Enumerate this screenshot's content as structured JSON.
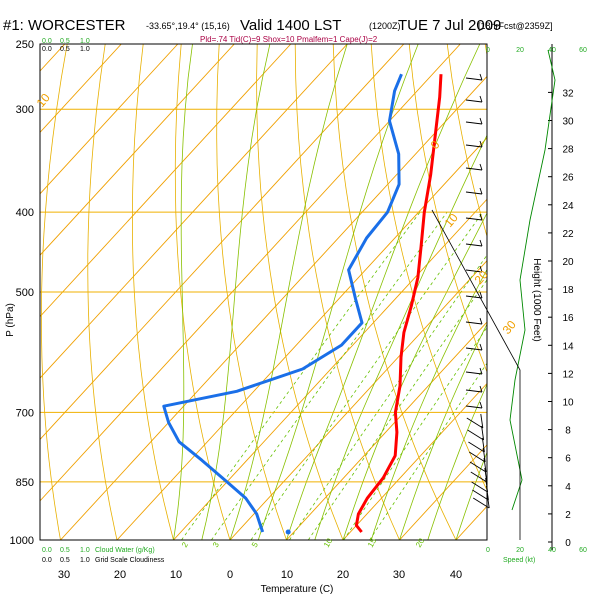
{
  "header": {
    "title": "#1: WORCESTER",
    "coords": "-33.65°,19.4° (15,16)",
    "valid": "Valid 1400 LST",
    "utc": "(1200Z)",
    "date": "TUE 7 Jul 2009",
    "forecast": "[18hrFcst@2359Z]",
    "indices": "Pld=.74 Tid(C)=9 Shox=10 Pmalfem=1 Cape(J)=2"
  },
  "colors": {
    "temperature": "#ff0000",
    "dewpoint": "#1a6fe8",
    "isotherm": "#f0a000",
    "isobar": "#f0b000",
    "dry_adiabat": "#e8b000",
    "moist_adiabat": "#88c000",
    "mixing_ratio": "#66c000",
    "wind_speed": "#008800",
    "green_text": "#22aa22"
  },
  "chart_data": {
    "type": "line",
    "title": "Skew-T log-P sounding",
    "xlabel": "Temperature (C)",
    "ylabel": "P (hPa)",
    "ylabel_right": "Height (1000 Feet)",
    "pressure_ticks": [
      250,
      300,
      400,
      500,
      700,
      850,
      1000
    ],
    "temperature_ticks": [
      30,
      20,
      10,
      0,
      10,
      20,
      30,
      40
    ],
    "height_ticks": [
      0,
      2,
      4,
      6,
      8,
      10,
      12,
      14,
      16,
      18,
      20,
      22,
      24,
      26,
      28,
      30,
      32
    ],
    "cloud_scale_labels": [
      "0.0",
      "0.5",
      "1.0"
    ],
    "cloud_water_label": "Cloud Water (g/Kg)",
    "grid_cloudiness_label": "Grid Scale Cloudiness",
    "wind_speed_ticks": [
      0,
      20,
      40,
      60
    ],
    "wind_speed_label": "Speed (kt)",
    "isotherm_labels": [
      "10",
      "0",
      "10",
      "20",
      "30"
    ],
    "mixing_ratio_labels": [
      "2",
      "3",
      "5",
      "10",
      "15",
      "20"
    ],
    "series": [
      {
        "name": "Temperature",
        "points": [
          {
            "p": 978,
            "t": 22.0
          },
          {
            "p": 960,
            "t": 20.0
          },
          {
            "p": 930,
            "t": 18.5
          },
          {
            "p": 890,
            "t": 17.5
          },
          {
            "p": 840,
            "t": 17.0
          },
          {
            "p": 790,
            "t": 15.5
          },
          {
            "p": 740,
            "t": 12.0
          },
          {
            "p": 700,
            "t": 8.5
          },
          {
            "p": 650,
            "t": 5.0
          },
          {
            "p": 600,
            "t": 0.5
          },
          {
            "p": 560,
            "t": -3.0
          },
          {
            "p": 520,
            "t": -6.0
          },
          {
            "p": 480,
            "t": -9.5
          },
          {
            "p": 440,
            "t": -14.0
          },
          {
            "p": 400,
            "t": -19.0
          },
          {
            "p": 360,
            "t": -24.0
          },
          {
            "p": 320,
            "t": -30.0
          },
          {
            "p": 290,
            "t": -35.0
          },
          {
            "p": 272,
            "t": -38.5
          }
        ]
      },
      {
        "name": "Dewpoint",
        "points": [
          {
            "p": 978,
            "t": 4.5
          },
          {
            "p": 960,
            "t": 3.0
          },
          {
            "p": 930,
            "t": 0.5
          },
          {
            "p": 890,
            "t": -4.0
          },
          {
            "p": 850,
            "t": -10.0
          },
          {
            "p": 800,
            "t": -18.0
          },
          {
            "p": 760,
            "t": -25.0
          },
          {
            "p": 720,
            "t": -30.0
          },
          {
            "p": 688,
            "t": -33.5
          },
          {
            "p": 660,
            "t": -23.0
          },
          {
            "p": 620,
            "t": -15.0
          },
          {
            "p": 580,
            "t": -12.0
          },
          {
            "p": 545,
            "t": -12.0
          },
          {
            "p": 510,
            "t": -17.0
          },
          {
            "p": 470,
            "t": -23.0
          },
          {
            "p": 430,
            "t": -25.0
          },
          {
            "p": 400,
            "t": -25.5
          },
          {
            "p": 370,
            "t": -28.0
          },
          {
            "p": 340,
            "t": -33.0
          },
          {
            "p": 310,
            "t": -40.0
          },
          {
            "p": 285,
            "t": -44.0
          },
          {
            "p": 272,
            "t": -45.5
          }
        ]
      }
    ],
    "surface_marker": {
      "p": 978,
      "t": 9.0
    }
  }
}
